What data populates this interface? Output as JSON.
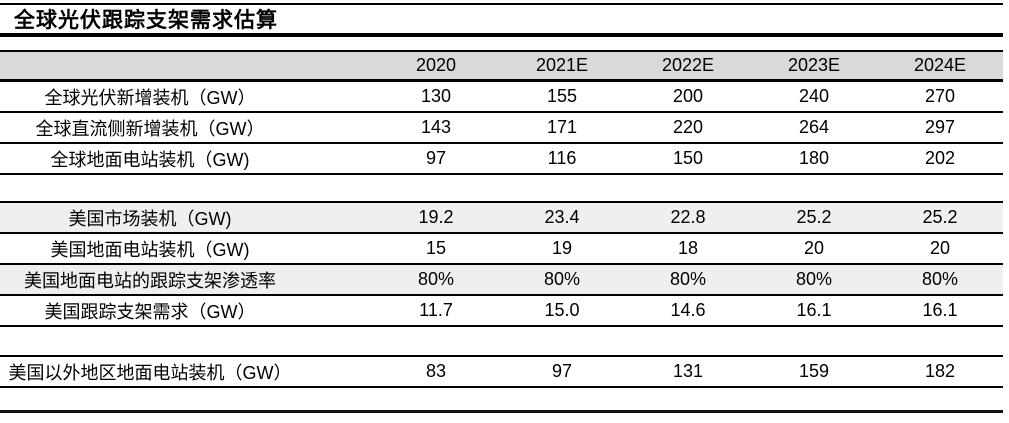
{
  "title": "全球光伏跟踪支架需求估算",
  "colors": {
    "header_bg": "#d9d9d9",
    "stripe_bg": "#efefef",
    "rule": "#000000",
    "text": "#000000"
  },
  "table": {
    "year_headers": [
      "2020",
      "2021E",
      "2022E",
      "2023E",
      "2024E"
    ],
    "rows": [
      {
        "label": "全球光伏新增装机（GW）",
        "values": [
          "130",
          "155",
          "200",
          "240",
          "270"
        ]
      },
      {
        "label": "全球直流侧新增装机（GW）",
        "values": [
          "143",
          "171",
          "220",
          "264",
          "297"
        ]
      },
      {
        "label": "全球地面电站装机（GW)",
        "values": [
          "97",
          "116",
          "150",
          "180",
          "202"
        ]
      },
      {
        "label": "美国市场装机（GW)",
        "values": [
          "19.2",
          "23.4",
          "22.8",
          "25.2",
          "25.2"
        ]
      },
      {
        "label": "美国地面电站装机（GW)",
        "values": [
          "15",
          "19",
          "18",
          "20",
          "20"
        ]
      },
      {
        "label": "美国地面电站的跟踪支架渗透率",
        "values": [
          "80%",
          "80%",
          "80%",
          "80%",
          "80%"
        ]
      },
      {
        "label": "美国跟踪支架需求（GW）",
        "values": [
          "11.7",
          "15.0",
          "14.6",
          "16.1",
          "16.1"
        ]
      },
      {
        "label": "美国以外地区地面电站装机（GW）",
        "values": [
          "83",
          "97",
          "131",
          "159",
          "182"
        ]
      }
    ]
  }
}
